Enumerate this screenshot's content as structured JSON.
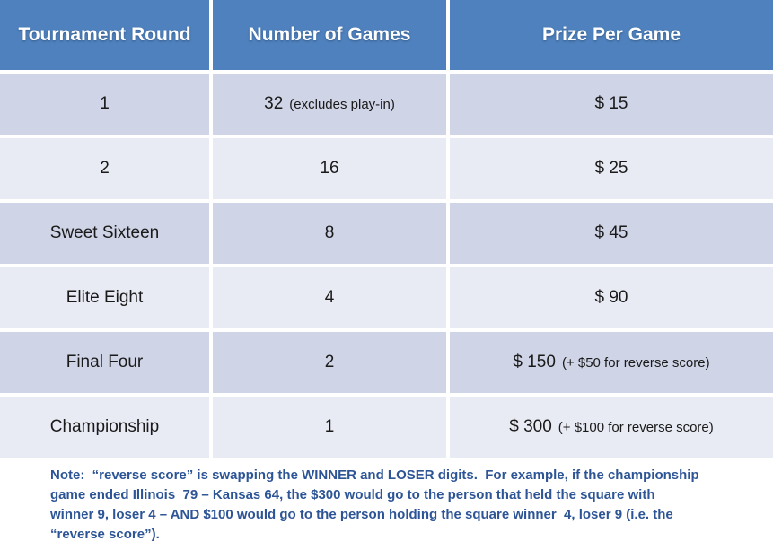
{
  "colors": {
    "header_bg": "#4E81BD",
    "header_text": "#FFFFFF",
    "band_dark": "#CFD4E6",
    "band_light": "#E9EBF4",
    "body_text": "#1A1A1A",
    "note_text": "#2D5596"
  },
  "table": {
    "headers": [
      "Tournament Round",
      "Number of Games",
      "Prize Per Game"
    ],
    "rows": [
      {
        "round": "1",
        "games": "32",
        "games_note": "(excludes play-in)",
        "prize": "$ 15",
        "prize_note": ""
      },
      {
        "round": "2",
        "games": "16",
        "games_note": "",
        "prize": "$ 25",
        "prize_note": ""
      },
      {
        "round": "Sweet Sixteen",
        "games": "8",
        "games_note": "",
        "prize": "$ 45",
        "prize_note": ""
      },
      {
        "round": "Elite Eight",
        "games": "4",
        "games_note": "",
        "prize": "$ 90",
        "prize_note": ""
      },
      {
        "round": "Final Four",
        "games": "2",
        "games_note": "",
        "prize": "$ 150",
        "prize_note": "(+ $50 for reverse score)"
      },
      {
        "round": "Championship",
        "games": "1",
        "games_note": "",
        "prize": "$ 300",
        "prize_note": "(+ $100 for reverse score)"
      }
    ]
  },
  "note": {
    "lines": [
      "Note:  “reverse score” is swapping the WINNER and LOSER digits.  For example, if the championship",
      "game ended Illinois  79 – Kansas 64, the $300 would go to the person that held the square with",
      "winner 9, loser 4 – AND $100 would go to the person holding the square winner  4, loser 9 (i.e. the",
      "“reverse score”)."
    ]
  }
}
